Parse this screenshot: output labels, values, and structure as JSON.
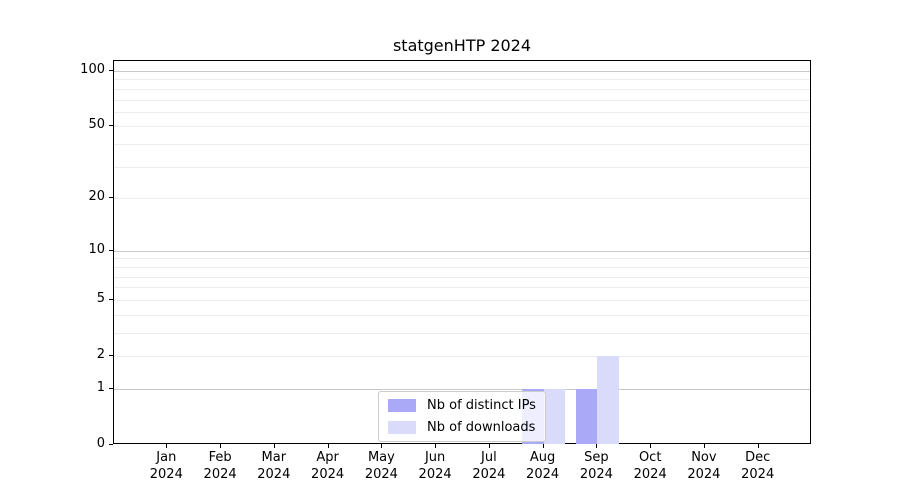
{
  "chart_data": {
    "type": "bar",
    "title": "statgenHTP 2024",
    "x_axis": {
      "tick_labels": [
        {
          "month": "Jan",
          "year": "2024"
        },
        {
          "month": "Feb",
          "year": "2024"
        },
        {
          "month": "Mar",
          "year": "2024"
        },
        {
          "month": "Apr",
          "year": "2024"
        },
        {
          "month": "May",
          "year": "2024"
        },
        {
          "month": "Jun",
          "year": "2024"
        },
        {
          "month": "Jul",
          "year": "2024"
        },
        {
          "month": "Aug",
          "year": "2024"
        },
        {
          "month": "Sep",
          "year": "2024"
        },
        {
          "month": "Oct",
          "year": "2024"
        },
        {
          "month": "Nov",
          "year": "2024"
        },
        {
          "month": "Dec",
          "year": "2024"
        }
      ]
    },
    "y_axis": {
      "scale": "log1p",
      "ticks": [
        0,
        1,
        2,
        5,
        10,
        20,
        50,
        100
      ],
      "tick_labels": [
        "0",
        "1",
        "2",
        "5",
        "10",
        "20",
        "50",
        "100"
      ],
      "major_grid_values": [
        1,
        10,
        100
      ],
      "minor_grid_values": [
        2,
        3,
        4,
        5,
        6,
        7,
        8,
        9,
        20,
        30,
        40,
        50,
        60,
        70,
        80,
        90
      ],
      "grid": true
    },
    "series": [
      {
        "name": "Nb of distinct IPs",
        "color": "#a9a9f7",
        "values": [
          0,
          0,
          0,
          0,
          0,
          0,
          0,
          1,
          1,
          0,
          0,
          0
        ]
      },
      {
        "name": "Nb of downloads",
        "color": "#dadafa",
        "values": [
          0,
          0,
          0,
          0,
          0,
          0,
          0,
          1,
          2,
          0,
          0,
          0
        ]
      }
    ],
    "legend": {
      "position": "lower-center",
      "entries": [
        "Nb of distinct IPs",
        "Nb of downloads"
      ]
    },
    "colors": {
      "major_grid": "#c9c9c9",
      "minor_grid": "#ececec",
      "spine": "#000000",
      "background": "#ffffff"
    }
  }
}
